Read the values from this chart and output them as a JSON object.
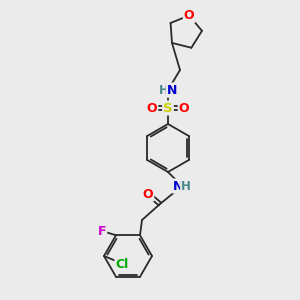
{
  "bg_color": "#ebebeb",
  "atom_colors": {
    "O": "#ff0000",
    "N": "#0000cd",
    "S": "#cccc00",
    "F": "#cc00cc",
    "Cl": "#00aa00",
    "H_color": "#4a8888",
    "C": "#000000"
  },
  "bond_color": "#2a2a2a",
  "lw": 1.3
}
